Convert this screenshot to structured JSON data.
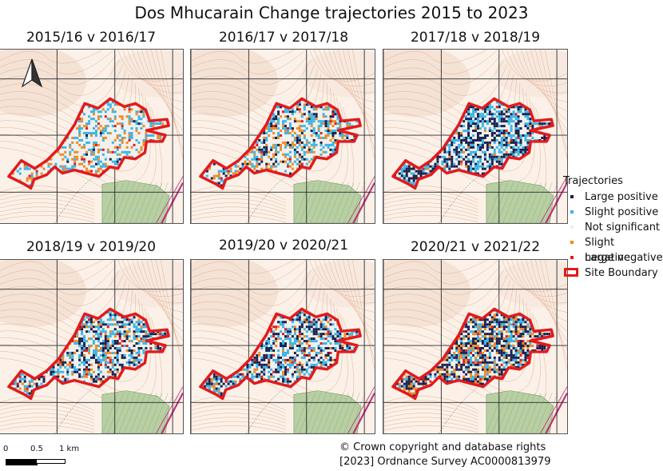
{
  "title": "Dos Mhucarain Change trajectories 2015 to 2023",
  "panels": [
    {
      "title": "2015/16 v 2016/17",
      "density": 0.35,
      "mix": [
        0.03,
        0.52,
        0.4,
        0.05
      ]
    },
    {
      "title": "2016/17 v 2017/18",
      "density": 0.48,
      "mix": [
        0.2,
        0.45,
        0.3,
        0.05
      ]
    },
    {
      "title": "2017/18 v 2018/19",
      "density": 0.62,
      "mix": [
        0.55,
        0.38,
        0.05,
        0.02
      ]
    },
    {
      "title": "2018/19 v 2019/20",
      "density": 0.55,
      "mix": [
        0.35,
        0.4,
        0.17,
        0.08
      ]
    },
    {
      "title": "2019/20 v 2020/21",
      "density": 0.58,
      "mix": [
        0.42,
        0.38,
        0.12,
        0.08
      ]
    },
    {
      "title": "2020/21 v 2021/22",
      "density": 0.68,
      "mix": [
        0.48,
        0.22,
        0.25,
        0.05
      ]
    }
  ],
  "legend": {
    "title": "Trajectories",
    "items": [
      {
        "label": "Large positive",
        "color": "#1a1f4d",
        "icon": "square"
      },
      {
        "label": "Slight positive",
        "color": "#38b6e8",
        "icon": "square"
      },
      {
        "label": "Not significant",
        "color": "#f4eee6",
        "icon": "square"
      },
      {
        "label": "Slight negative",
        "color": "#f08a24",
        "icon": "square"
      },
      {
        "label": "Large negative",
        "color": "#e31a1c",
        "icon": "square"
      },
      {
        "label": "Site Boundary",
        "color": "#e31a1c",
        "icon": "outline-box"
      }
    ]
  },
  "scalebar": {
    "labels": [
      "0",
      "0.5",
      "1 km"
    ]
  },
  "copyright": [
    "© Crown copyright and database rights",
    "[2023] Ordnance Survey AC0000813979"
  ],
  "colors": {
    "boundary": "#e31a1c",
    "grid": "#2a2a2a",
    "contour": "#e3a98a",
    "woodland": "#b7cfa2",
    "road": "#c0307a"
  },
  "icons": {
    "north_arrow": "north-arrow-icon"
  }
}
